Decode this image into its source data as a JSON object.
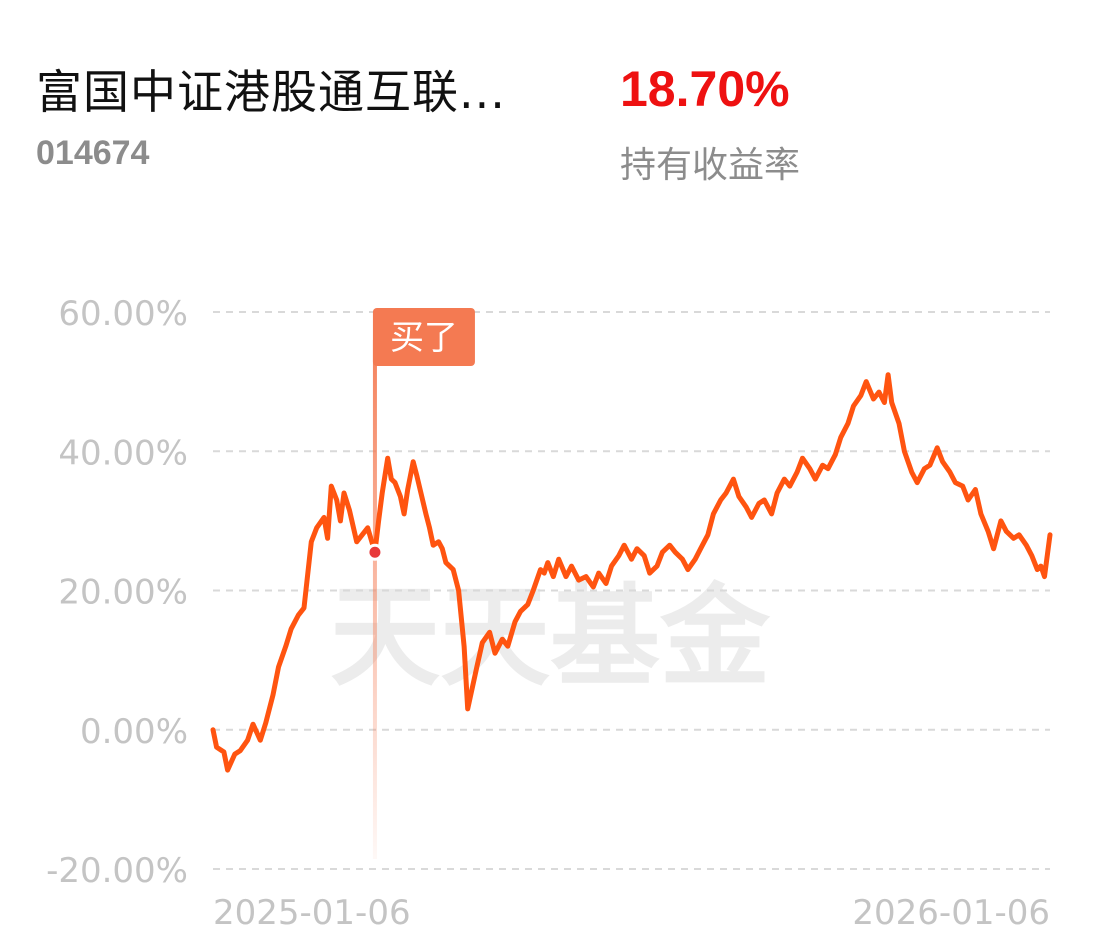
{
  "fund": {
    "name": "富国中证港股通互联...",
    "code": "014674",
    "return_value": "18.70%",
    "return_label": "持有收益率"
  },
  "watermark": "天天基金",
  "colors": {
    "line": "#ff5410",
    "return_text": "#ee1111",
    "marker": "#f47a52",
    "marker_dot": "#e8393a",
    "grid": "#d9d9d9",
    "axis_text": "#c4c4c4"
  },
  "chart_data": {
    "type": "line",
    "title": "",
    "xlabel": "",
    "ylabel": "",
    "ylim": [
      -20,
      60
    ],
    "yticks": [
      "60.00%",
      "40.00%",
      "20.00%",
      "0.00%",
      "-20.00%"
    ],
    "ytick_values": [
      60,
      40,
      20,
      0,
      -20
    ],
    "xtick_labels": [
      "2025-01-06",
      "2026-01-06"
    ],
    "grid": "horizontal dashed",
    "x_start": "2024-10-09",
    "x_end": "2026-01-12",
    "series": [
      {
        "values": [
          [
            "2024-10-09",
            0.0
          ],
          [
            "2024-10-11",
            -2.5
          ],
          [
            "2024-10-15",
            -3.2
          ],
          [
            "2024-10-17",
            -5.8
          ],
          [
            "2024-10-21",
            -3.5
          ],
          [
            "2024-10-24",
            -3.0
          ],
          [
            "2024-10-28",
            -1.5
          ],
          [
            "2024-10-31",
            0.8
          ],
          [
            "2024-11-04",
            -1.5
          ],
          [
            "2024-11-07",
            1.0
          ],
          [
            "2024-11-11",
            5.0
          ],
          [
            "2024-11-14",
            9.0
          ],
          [
            "2024-11-18",
            12.0
          ],
          [
            "2024-11-21",
            14.5
          ],
          [
            "2024-11-25",
            16.5
          ],
          [
            "2024-11-28",
            17.5
          ],
          [
            "2024-12-02",
            27.0
          ],
          [
            "2024-12-05",
            29.0
          ],
          [
            "2024-12-09",
            30.5
          ],
          [
            "2024-12-11",
            27.5
          ],
          [
            "2024-12-13",
            35.0
          ],
          [
            "2024-12-16",
            33.0
          ],
          [
            "2024-12-18",
            30.0
          ],
          [
            "2024-12-20",
            34.0
          ],
          [
            "2024-12-23",
            31.5
          ],
          [
            "2024-12-27",
            27.0
          ],
          [
            "2025-01-02",
            29.0
          ],
          [
            "2025-01-06",
            25.5
          ],
          [
            "2025-01-08",
            30.0
          ],
          [
            "2025-01-10",
            34.0
          ],
          [
            "2025-01-13",
            39.0
          ],
          [
            "2025-01-15",
            36.0
          ],
          [
            "2025-01-17",
            35.5
          ],
          [
            "2025-01-20",
            33.5
          ],
          [
            "2025-01-22",
            31.0
          ],
          [
            "2025-01-24",
            34.5
          ],
          [
            "2025-01-27",
            38.5
          ],
          [
            "2025-01-29",
            36.5
          ],
          [
            "2025-02-03",
            31.0
          ],
          [
            "2025-02-05",
            29.0
          ],
          [
            "2025-02-07",
            26.5
          ],
          [
            "2025-02-10",
            27.0
          ],
          [
            "2025-02-12",
            26.0
          ],
          [
            "2025-02-14",
            24.0
          ],
          [
            "2025-02-18",
            23.0
          ],
          [
            "2025-02-21",
            20.0
          ],
          [
            "2025-02-24",
            12.0
          ],
          [
            "2025-02-26",
            3.0
          ],
          [
            "2025-03-03",
            9.0
          ],
          [
            "2025-03-06",
            12.5
          ],
          [
            "2025-03-10",
            14.0
          ],
          [
            "2025-03-13",
            11.0
          ],
          [
            "2025-03-17",
            13.0
          ],
          [
            "2025-03-20",
            12.0
          ],
          [
            "2025-03-24",
            15.5
          ],
          [
            "2025-03-27",
            17.0
          ],
          [
            "2025-03-31",
            18.0
          ],
          [
            "2025-04-03",
            20.0
          ],
          [
            "2025-04-07",
            23.0
          ],
          [
            "2025-04-09",
            22.5
          ],
          [
            "2025-04-11",
            24.0
          ],
          [
            "2025-04-14",
            22.0
          ],
          [
            "2025-04-17",
            24.5
          ],
          [
            "2025-04-21",
            22.0
          ],
          [
            "2025-04-24",
            23.5
          ],
          [
            "2025-04-28",
            21.5
          ],
          [
            "2025-05-02",
            22.0
          ],
          [
            "2025-05-06",
            20.5
          ],
          [
            "2025-05-09",
            22.5
          ],
          [
            "2025-05-13",
            21.0
          ],
          [
            "2025-05-16",
            23.5
          ],
          [
            "2025-05-20",
            25.0
          ],
          [
            "2025-05-23",
            26.5
          ],
          [
            "2025-05-27",
            24.5
          ],
          [
            "2025-05-30",
            26.0
          ],
          [
            "2025-06-03",
            25.0
          ],
          [
            "2025-06-06",
            22.5
          ],
          [
            "2025-06-10",
            23.5
          ],
          [
            "2025-06-13",
            25.5
          ],
          [
            "2025-06-17",
            26.5
          ],
          [
            "2025-06-20",
            25.5
          ],
          [
            "2025-06-24",
            24.5
          ],
          [
            "2025-06-27",
            23.0
          ],
          [
            "2025-07-01",
            24.5
          ],
          [
            "2025-07-04",
            26.0
          ],
          [
            "2025-07-08",
            28.0
          ],
          [
            "2025-07-11",
            31.0
          ],
          [
            "2025-07-15",
            33.0
          ],
          [
            "2025-07-18",
            34.0
          ],
          [
            "2025-07-22",
            36.0
          ],
          [
            "2025-07-25",
            33.5
          ],
          [
            "2025-07-29",
            32.0
          ],
          [
            "2025-08-01",
            30.5
          ],
          [
            "2025-08-05",
            32.5
          ],
          [
            "2025-08-08",
            33.0
          ],
          [
            "2025-08-12",
            31.0
          ],
          [
            "2025-08-15",
            34.0
          ],
          [
            "2025-08-19",
            36.0
          ],
          [
            "2025-08-22",
            35.0
          ],
          [
            "2025-08-26",
            37.0
          ],
          [
            "2025-08-29",
            39.0
          ],
          [
            "2025-09-02",
            37.5
          ],
          [
            "2025-09-05",
            36.0
          ],
          [
            "2025-09-09",
            38.0
          ],
          [
            "2025-09-12",
            37.5
          ],
          [
            "2025-09-16",
            39.5
          ],
          [
            "2025-09-19",
            42.0
          ],
          [
            "2025-09-23",
            44.0
          ],
          [
            "2025-09-26",
            46.5
          ],
          [
            "2025-09-30",
            48.0
          ],
          [
            "2025-10-03",
            50.0
          ],
          [
            "2025-10-07",
            47.5
          ],
          [
            "2025-10-10",
            48.5
          ],
          [
            "2025-10-13",
            47.0
          ],
          [
            "2025-10-15",
            51.0
          ],
          [
            "2025-10-17",
            47.0
          ],
          [
            "2025-10-21",
            44.0
          ],
          [
            "2025-10-24",
            40.0
          ],
          [
            "2025-10-28",
            37.0
          ],
          [
            "2025-10-31",
            35.5
          ],
          [
            "2025-11-04",
            37.5
          ],
          [
            "2025-11-07",
            38.0
          ],
          [
            "2025-11-11",
            40.5
          ],
          [
            "2025-11-14",
            38.5
          ],
          [
            "2025-11-18",
            37.0
          ],
          [
            "2025-11-21",
            35.5
          ],
          [
            "2025-11-25",
            35.0
          ],
          [
            "2025-11-28",
            33.0
          ],
          [
            "2025-12-02",
            34.5
          ],
          [
            "2025-12-05",
            31.0
          ],
          [
            "2025-12-09",
            28.5
          ],
          [
            "2025-12-12",
            26.0
          ],
          [
            "2025-12-16",
            30.0
          ],
          [
            "2025-12-19",
            28.5
          ],
          [
            "2025-12-23",
            27.5
          ],
          [
            "2025-12-26",
            28.0
          ],
          [
            "2025-12-30",
            26.5
          ],
          [
            "2026-01-02",
            25.0
          ],
          [
            "2026-01-05",
            23.0
          ],
          [
            "2026-01-07",
            23.5
          ],
          [
            "2026-01-09",
            22.0
          ],
          [
            "2026-01-12",
            28.0
          ]
        ]
      }
    ],
    "annotations": [
      {
        "label": "买了",
        "x": "2025-01-06",
        "y": 25.5
      }
    ]
  }
}
